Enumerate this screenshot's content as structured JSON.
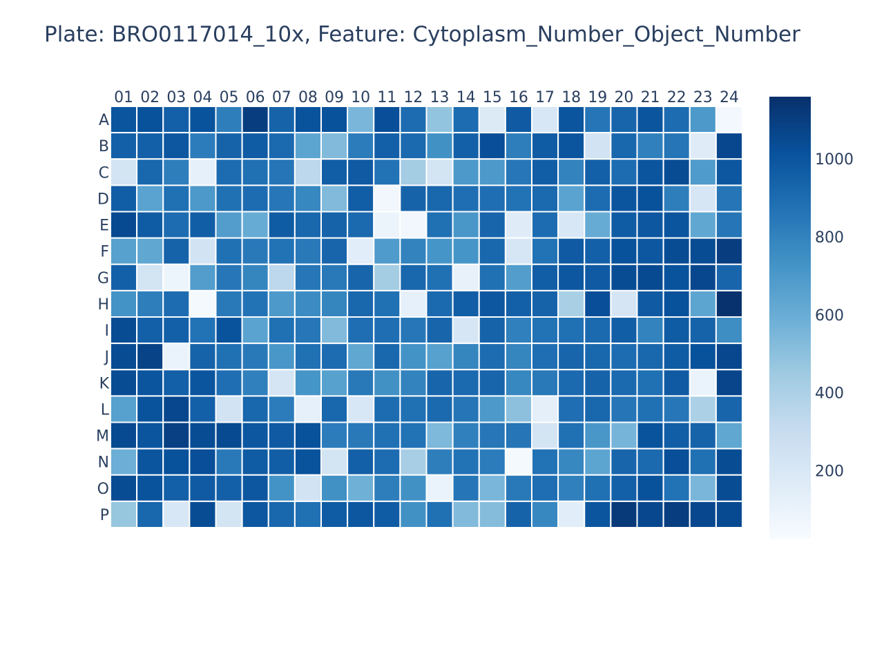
{
  "chart_data": {
    "type": "heatmap",
    "title": "Plate: BRO0117014_10x, Feature: Cytoplasm_Number_Object_Number",
    "columns": [
      "01",
      "02",
      "03",
      "04",
      "05",
      "06",
      "07",
      "08",
      "09",
      "10",
      "11",
      "12",
      "13",
      "14",
      "15",
      "16",
      "17",
      "18",
      "19",
      "20",
      "21",
      "22",
      "23",
      "24"
    ],
    "rows": [
      "A",
      "B",
      "C",
      "D",
      "E",
      "F",
      "G",
      "H",
      "I",
      "J",
      "K",
      "L",
      "M",
      "N",
      "O",
      "P"
    ],
    "values": [
      [
        1000,
        1020,
        950,
        1010,
        820,
        1100,
        940,
        1010,
        1020,
        550,
        1030,
        900,
        480,
        900,
        180,
        980,
        200,
        1000,
        860,
        930,
        1000,
        900,
        700,
        50
      ],
      [
        950,
        950,
        990,
        830,
        940,
        970,
        910,
        640,
        530,
        830,
        950,
        910,
        740,
        950,
        1030,
        820,
        970,
        1000,
        240,
        920,
        810,
        860,
        160,
        1060
      ],
      [
        230,
        920,
        820,
        120,
        900,
        880,
        860,
        340,
        960,
        980,
        870,
        430,
        230,
        700,
        700,
        850,
        960,
        800,
        950,
        900,
        1000,
        1040,
        690,
        990
      ],
      [
        960,
        650,
        880,
        700,
        880,
        900,
        850,
        780,
        530,
        960,
        60,
        940,
        920,
        890,
        890,
        870,
        910,
        650,
        900,
        1000,
        1020,
        820,
        210,
        860
      ],
      [
        1050,
        970,
        900,
        960,
        680,
        610,
        970,
        920,
        940,
        910,
        90,
        60,
        880,
        710,
        930,
        160,
        900,
        200,
        610,
        970,
        990,
        1000,
        630,
        860
      ],
      [
        660,
        630,
        940,
        240,
        880,
        840,
        870,
        840,
        930,
        150,
        690,
        800,
        720,
        720,
        920,
        210,
        870,
        980,
        950,
        1020,
        990,
        1040,
        1040,
        1100
      ],
      [
        950,
        230,
        80,
        680,
        850,
        790,
        340,
        850,
        840,
        930,
        430,
        920,
        880,
        110,
        880,
        680,
        960,
        990,
        980,
        1040,
        1050,
        1010,
        1060,
        930
      ],
      [
        730,
        820,
        900,
        40,
        840,
        870,
        700,
        760,
        790,
        920,
        880,
        120,
        910,
        960,
        990,
        950,
        940,
        410,
        1030,
        220,
        980,
        1020,
        640,
        1150
      ],
      [
        1040,
        950,
        950,
        870,
        1010,
        650,
        880,
        850,
        530,
        890,
        890,
        850,
        930,
        210,
        940,
        810,
        870,
        880,
        910,
        960,
        800,
        970,
        940,
        750
      ],
      [
        1040,
        1080,
        100,
        940,
        880,
        840,
        710,
        880,
        900,
        630,
        920,
        730,
        660,
        790,
        900,
        790,
        890,
        930,
        920,
        900,
        920,
        970,
        1020,
        1060
      ],
      [
        1040,
        1000,
        950,
        1000,
        890,
        810,
        220,
        720,
        660,
        840,
        740,
        800,
        930,
        910,
        930,
        780,
        840,
        910,
        940,
        910,
        880,
        980,
        100,
        1070
      ],
      [
        660,
        1010,
        1060,
        950,
        240,
        920,
        830,
        120,
        920,
        200,
        900,
        880,
        910,
        860,
        700,
        500,
        130,
        890,
        920,
        860,
        880,
        850,
        400,
        930
      ],
      [
        1050,
        1000,
        1090,
        1040,
        1050,
        990,
        980,
        1020,
        830,
        840,
        880,
        870,
        540,
        810,
        850,
        860,
        230,
        880,
        710,
        560,
        1010,
        960,
        940,
        630
      ],
      [
        590,
        1000,
        1020,
        1030,
        840,
        970,
        960,
        1010,
        230,
        950,
        900,
        420,
        820,
        870,
        830,
        40,
        870,
        780,
        640,
        930,
        910,
        1030,
        880,
        1040
      ],
      [
        1040,
        1010,
        950,
        980,
        950,
        990,
        730,
        240,
        740,
        580,
        820,
        740,
        100,
        860,
        550,
        840,
        890,
        810,
        880,
        950,
        1020,
        870,
        550,
        1040
      ],
      [
        470,
        920,
        200,
        1040,
        230,
        990,
        920,
        880,
        970,
        990,
        970,
        740,
        880,
        530,
        520,
        940,
        780,
        150,
        1000,
        1120,
        1060,
        1100,
        1060,
        1050
      ]
    ],
    "zmin": 25,
    "zmax": 1160,
    "colorscale": "Blues",
    "colorbar_ticks": [
      200,
      400,
      600,
      800,
      1000
    ]
  }
}
